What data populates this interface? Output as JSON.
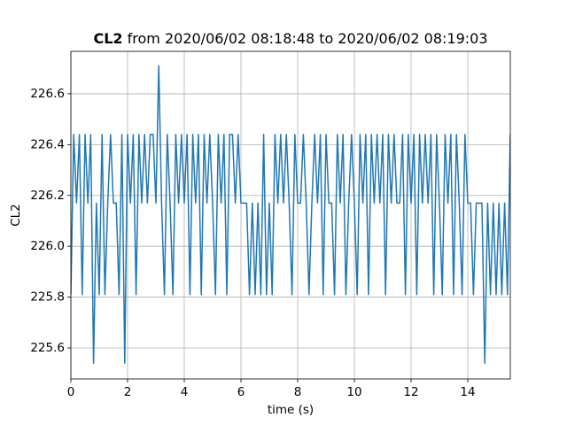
{
  "chart_data": {
    "type": "line",
    "title_parts": [
      "CL2",
      "from 2020/06/02 08:18:48 to 2020/06/02 08:19:03"
    ],
    "x_label": "time (s)",
    "y_label": "CL2",
    "x": [
      0,
      0.1,
      0.2,
      0.3,
      0.4,
      0.5,
      0.6,
      0.7,
      0.8,
      0.9,
      1,
      1.1,
      1.2,
      1.3,
      1.4,
      1.5,
      1.6,
      1.7,
      1.8,
      1.9,
      2,
      2.1,
      2.2,
      2.3,
      2.4,
      2.5,
      2.6,
      2.7,
      2.8,
      2.9,
      3,
      3.1,
      3.2,
      3.3,
      3.4,
      3.5,
      3.6,
      3.7,
      3.8,
      3.9,
      4,
      4.1,
      4.2,
      4.3,
      4.4,
      4.5,
      4.6,
      4.7,
      4.8,
      4.9,
      5,
      5.1,
      5.2,
      5.3,
      5.4,
      5.5,
      5.6,
      5.7,
      5.8,
      5.9,
      6,
      6.1,
      6.2,
      6.3,
      6.4,
      6.5,
      6.6,
      6.7,
      6.8,
      6.9,
      7,
      7.1,
      7.2,
      7.3,
      7.4,
      7.5,
      7.6,
      7.7,
      7.8,
      7.9,
      8,
      8.1,
      8.2,
      8.3,
      8.4,
      8.5,
      8.6,
      8.7,
      8.8,
      8.9,
      9,
      9.1,
      9.2,
      9.3,
      9.4,
      9.5,
      9.6,
      9.7,
      9.8,
      9.9,
      10,
      10.1,
      10.2,
      10.3,
      10.4,
      10.5,
      10.6,
      10.7,
      10.8,
      10.9,
      11,
      11.1,
      11.2,
      11.3,
      11.4,
      11.5,
      11.6,
      11.7,
      11.8,
      11.9,
      12,
      12.1,
      12.2,
      12.3,
      12.4,
      12.5,
      12.6,
      12.7,
      12.8,
      12.9,
      13,
      13.1,
      13.2,
      13.3,
      13.4,
      13.5,
      13.6,
      13.7,
      13.8,
      13.9,
      14,
      14.1,
      14.2,
      14.3,
      14.4,
      14.5,
      14.6,
      14.7,
      14.8,
      14.9,
      15,
      15.1,
      15.2,
      15.3,
      15.4,
      15.5
    ],
    "series": [
      {
        "name": "CL2",
        "color": "#1f77b4",
        "values": [
          225.81,
          226.44,
          226.17,
          226.44,
          225.81,
          226.44,
          226.17,
          226.44,
          225.54,
          226.17,
          225.81,
          226.44,
          225.81,
          226.17,
          226.44,
          226.17,
          226.17,
          225.81,
          226.44,
          225.54,
          226.44,
          226.17,
          226.44,
          225.81,
          226.44,
          226.17,
          226.44,
          226.17,
          226.44,
          226.44,
          226.17,
          226.71,
          226.17,
          225.81,
          226.44,
          226.17,
          225.81,
          226.44,
          226.17,
          226.44,
          226.17,
          226.44,
          225.81,
          226.44,
          226.17,
          226.44,
          225.81,
          226.44,
          226.17,
          226.44,
          226.17,
          225.81,
          226.44,
          226.17,
          226.44,
          225.81,
          226.44,
          226.44,
          226.17,
          226.44,
          226.17,
          226.17,
          226.17,
          225.81,
          226.17,
          225.81,
          226.17,
          225.81,
          226.44,
          225.81,
          226.17,
          225.81,
          226.44,
          226.17,
          226.44,
          226.17,
          226.44,
          226.17,
          225.81,
          226.44,
          226.17,
          226.17,
          226.44,
          226.17,
          225.81,
          226.17,
          226.44,
          226.17,
          226.44,
          225.81,
          226.44,
          226.17,
          226.17,
          225.81,
          226.44,
          226.17,
          226.44,
          225.81,
          226.17,
          226.44,
          226.17,
          225.81,
          226.44,
          226.17,
          226.44,
          225.81,
          226.44,
          226.17,
          226.44,
          226.17,
          226.44,
          225.81,
          226.44,
          226.17,
          226.44,
          226.17,
          226.17,
          226.44,
          225.81,
          226.44,
          226.17,
          226.44,
          225.81,
          226.44,
          226.17,
          226.44,
          226.17,
          226.44,
          225.81,
          226.44,
          226.17,
          225.81,
          226.44,
          226.17,
          226.44,
          225.81,
          226.44,
          226.17,
          225.81,
          226.44,
          226.17,
          226.17,
          225.81,
          226.17,
          226.17,
          226.17,
          225.54,
          226.17,
          225.81,
          226.17,
          225.81,
          226.17,
          225.81,
          226.17,
          225.81,
          226.44
        ]
      }
    ],
    "xlim": [
      0,
      15.5
    ],
    "ylim": [
      225.478,
      226.767
    ],
    "xticks": [
      0,
      2,
      4,
      6,
      8,
      10,
      12,
      14
    ],
    "yticks": [
      225.6,
      225.8,
      {
        "value": 226.0,
        "label": "226.0"
      },
      226.2,
      226.4,
      226.6
    ],
    "grid": true
  }
}
